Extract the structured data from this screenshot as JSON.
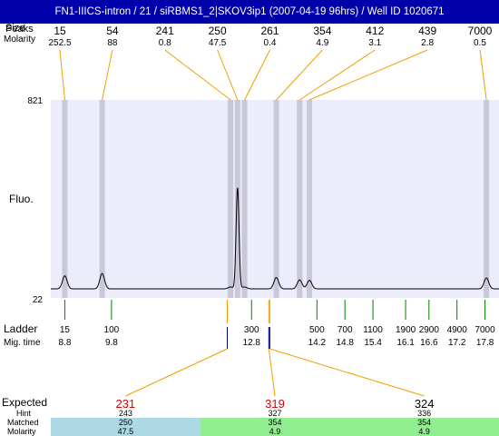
{
  "title": "FN1-IIICS-intron / 21 / siRBMS1_2|SKOV3ip1 (2007-04-19 96hrs) / Well ID 1020671",
  "labels": {
    "size_row_a": "Size",
    "size_row_b": "Peaks",
    "molarity_row": "Molarity",
    "fluo_axis": "Fluo.",
    "ladder_row": "Ladder",
    "migtime_row": "Mig. time",
    "expected_row": "Expected",
    "hint_row": "Hint",
    "matched_row": "Matched",
    "bottom_molarity_row": "Molarity"
  },
  "colors": {
    "title_bg": "#0000aa",
    "plot_bg": "#ececfa",
    "peak_band": "#c8c8d8",
    "connector": "#f0a000",
    "ladder_tick": "#008000",
    "expected_text": "#dd0000",
    "matched_blue": "#add8e6",
    "matched_green": "#90ee90"
  },
  "chart_data": {
    "type": "line",
    "ylim": [
      22,
      821
    ],
    "y_ticks": [
      "821",
      "22"
    ],
    "xlim": [
      8.5,
      18.1
    ],
    "peaks": [
      {
        "size": "15",
        "molarity": "252.5",
        "mig_time": 8.8,
        "height": 55
      },
      {
        "size": "54",
        "molarity": "88",
        "mig_time": 9.6,
        "height": 65
      },
      {
        "size": "241",
        "molarity": "0.8",
        "mig_time": 12.35,
        "height": 8
      },
      {
        "size": "250",
        "molarity": "47.5",
        "mig_time": 12.5,
        "height": 430
      },
      {
        "size": "261",
        "molarity": "0.4",
        "mig_time": 12.65,
        "height": 8
      },
      {
        "size": "354",
        "molarity": "4.9",
        "mig_time": 13.33,
        "height": 48
      },
      {
        "size": "412",
        "molarity": "3.1",
        "mig_time": 13.83,
        "height": 38
      },
      {
        "size": "439",
        "molarity": "2.8",
        "mig_time": 14.04,
        "height": 36
      },
      {
        "size": "7000",
        "molarity": "0.5",
        "mig_time": 17.83,
        "height": 46
      }
    ],
    "ladder": [
      {
        "size": "15",
        "mig_time": "8.8",
        "t": 8.8
      },
      {
        "size": "100",
        "mig_time": "9.8",
        "t": 9.8
      },
      {
        "size": "300",
        "mig_time": "12.8",
        "t": 12.8
      },
      {
        "size": "500",
        "mig_time": "14.2",
        "t": 14.2
      },
      {
        "size": "700",
        "mig_time": "14.8",
        "t": 14.8
      },
      {
        "size": "1100",
        "mig_time": "15.4",
        "t": 15.4
      },
      {
        "size": "1900",
        "mig_time": "16.1",
        "t": 16.1
      },
      {
        "size": "2900",
        "mig_time": "16.6",
        "t": 16.6
      },
      {
        "size": "4900",
        "mig_time": "17.2",
        "t": 17.2
      },
      {
        "size": "7000",
        "mig_time": "17.8",
        "t": 17.8
      }
    ],
    "expected": [
      {
        "expected": "231",
        "hint": "243",
        "matched": "250",
        "molarity": "47.5",
        "highlight": true,
        "status": "blue",
        "t": 12.28
      },
      {
        "expected": "319",
        "hint": "327",
        "matched": "354",
        "molarity": "4.9",
        "highlight": true,
        "status": "green",
        "t": 13.17
      },
      {
        "expected": "324",
        "hint": "336",
        "matched": "354",
        "molarity": "4.9",
        "highlight": false,
        "status": "green",
        "t": 13.19
      }
    ]
  }
}
